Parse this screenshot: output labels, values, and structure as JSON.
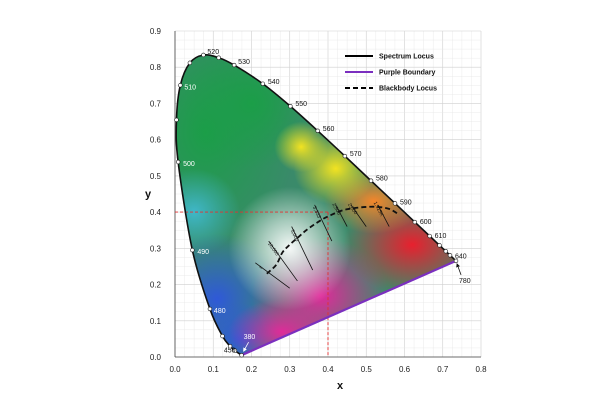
{
  "chart_data": {
    "type": "scatter",
    "xlabel": "x",
    "ylabel": "y",
    "xlim": [
      0,
      0.8
    ],
    "ylim": [
      0,
      0.9
    ],
    "x_ticks": [
      "0.0",
      "0.1",
      "0.2",
      "0.3",
      "0.4",
      "0.5",
      "0.6",
      "0.7",
      "0.8"
    ],
    "y_ticks": [
      "0.0",
      "0.1",
      "0.2",
      "0.3",
      "0.4",
      "0.5",
      "0.6",
      "0.7",
      "0.8",
      "0.9"
    ],
    "grid": true,
    "legend_position": "top-right",
    "legend": [
      {
        "label": "Spectrum Locus",
        "color": "#000000",
        "style": "solid"
      },
      {
        "label": "Purple Boundary",
        "color": "#7b2fbf",
        "style": "solid"
      },
      {
        "label": "Blackbody Locus",
        "color": "#000000",
        "style": "dashed"
      }
    ],
    "spectrum_locus": [
      {
        "label": "380",
        "x": 0.1741,
        "y": 0.005
      },
      {
        "label": "450",
        "x": 0.1566,
        "y": 0.0177
      },
      {
        "label": "460",
        "x": 0.144,
        "y": 0.0297
      },
      {
        "label": "470",
        "x": 0.1241,
        "y": 0.0578
      },
      {
        "label": "480",
        "x": 0.0913,
        "y": 0.1327
      },
      {
        "label": "490",
        "x": 0.0454,
        "y": 0.295
      },
      {
        "label": "500",
        "x": 0.0082,
        "y": 0.5384
      },
      {
        "label": "505",
        "x": 0.0039,
        "y": 0.6548
      },
      {
        "label": "510",
        "x": 0.0139,
        "y": 0.7502
      },
      {
        "label": "515",
        "x": 0.0389,
        "y": 0.812
      },
      {
        "label": "520",
        "x": 0.0743,
        "y": 0.8338
      },
      {
        "label": "525",
        "x": 0.1142,
        "y": 0.8262
      },
      {
        "label": "530",
        "x": 0.1547,
        "y": 0.8059
      },
      {
        "label": "540",
        "x": 0.2296,
        "y": 0.7543
      },
      {
        "label": "550",
        "x": 0.3016,
        "y": 0.6923
      },
      {
        "label": "560",
        "x": 0.3731,
        "y": 0.6245
      },
      {
        "label": "570",
        "x": 0.4441,
        "y": 0.5547
      },
      {
        "label": "580",
        "x": 0.5125,
        "y": 0.4866
      },
      {
        "label": "590",
        "x": 0.5752,
        "y": 0.4242
      },
      {
        "label": "600",
        "x": 0.627,
        "y": 0.3725
      },
      {
        "label": "610",
        "x": 0.6658,
        "y": 0.334
      },
      {
        "label": "620",
        "x": 0.6915,
        "y": 0.3083
      },
      {
        "label": "630",
        "x": 0.7079,
        "y": 0.292
      },
      {
        "label": "640",
        "x": 0.719,
        "y": 0.2809
      },
      {
        "label": "780",
        "x": 0.7347,
        "y": 0.2653
      }
    ],
    "labeled_wavelengths": [
      "380",
      "450",
      "480",
      "490",
      "500",
      "510",
      "520",
      "530",
      "540",
      "550",
      "560",
      "570",
      "580",
      "590",
      "600",
      "610",
      "640",
      "780"
    ],
    "purple_boundary": [
      {
        "x": 0.1741,
        "y": 0.005
      },
      {
        "x": 0.7347,
        "y": 0.2653
      }
    ],
    "blackbody_locus": [
      {
        "x": 0.24,
        "y": 0.23
      },
      {
        "x": 0.265,
        "y": 0.255
      },
      {
        "x": 0.2806,
        "y": 0.2883
      },
      {
        "x": 0.3003,
        "y": 0.3103
      },
      {
        "x": 0.3227,
        "y": 0.3312
      },
      {
        "x": 0.3451,
        "y": 0.3516
      },
      {
        "x": 0.38,
        "y": 0.3767
      },
      {
        "x": 0.4053,
        "y": 0.3907
      },
      {
        "x": 0.4476,
        "y": 0.4074
      },
      {
        "x": 0.5125,
        "y": 0.4149
      },
      {
        "x": 0.5573,
        "y": 0.4096
      },
      {
        "x": 0.5855,
        "y": 0.3933
      }
    ],
    "isotemperature_lines": [
      {
        "label": "∞",
        "x1": 0.21,
        "y1": 0.26,
        "x2": 0.3,
        "y2": 0.19
      },
      {
        "label": "10,000",
        "x1": 0.245,
        "y1": 0.32,
        "x2": 0.32,
        "y2": 0.21
      },
      {
        "label": "5,000",
        "x1": 0.305,
        "y1": 0.36,
        "x2": 0.36,
        "y2": 0.24
      },
      {
        "label": "3,333",
        "x1": 0.365,
        "y1": 0.42,
        "x2": 0.41,
        "y2": 0.32
      },
      {
        "label": "2,500",
        "x1": 0.42,
        "y1": 0.42,
        "x2": 0.45,
        "y2": 0.36
      },
      {
        "label": "2,000",
        "x1": 0.46,
        "y1": 0.42,
        "x2": 0.5,
        "y2": 0.36
      },
      {
        "label": "1,515K",
        "x1": 0.53,
        "y1": 0.42,
        "x2": 0.56,
        "y2": 0.36
      }
    ],
    "reference_point": {
      "x": 0.4,
      "y": 0.4,
      "color": "#e53030",
      "style": "dashed"
    }
  }
}
